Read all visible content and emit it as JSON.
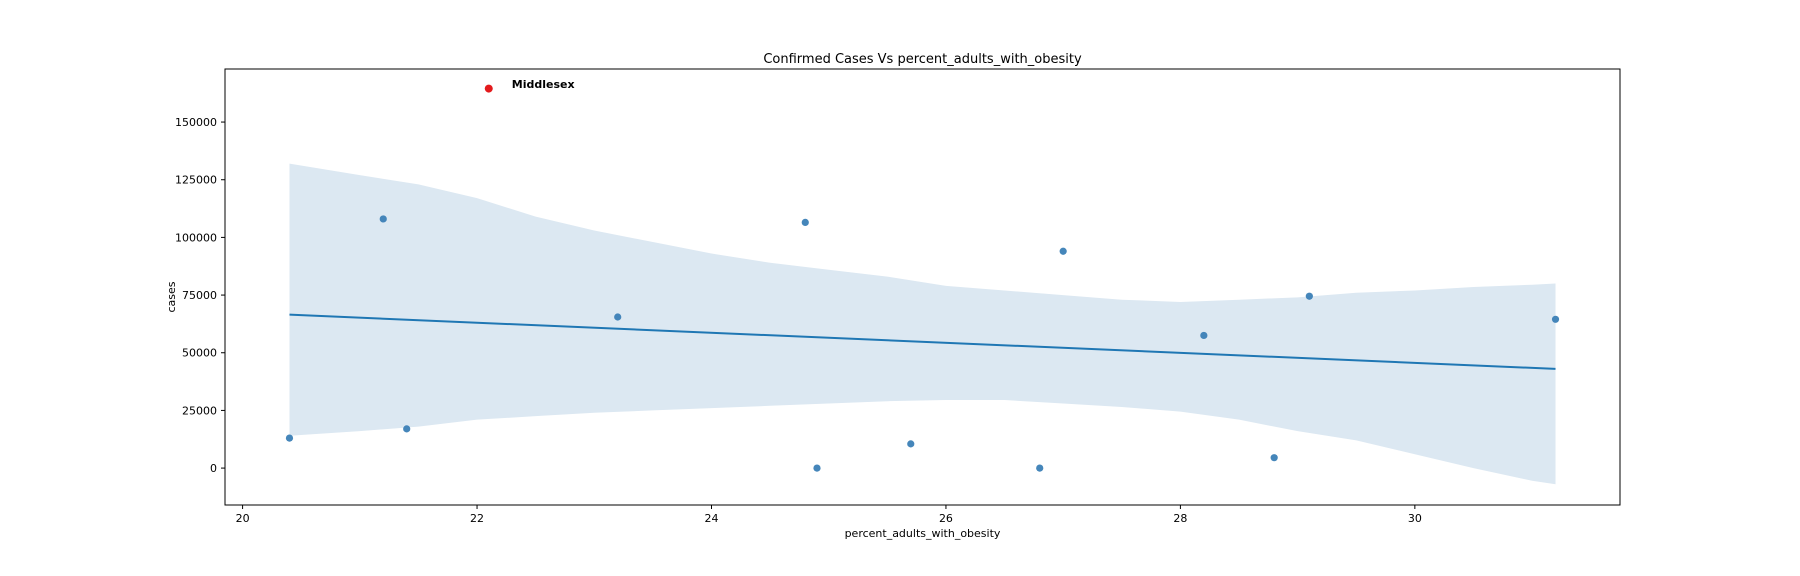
{
  "chart_data": {
    "type": "scatter",
    "title": "Confirmed Cases Vs percent_adults_with_obesity",
    "xlabel": "percent_adults_with_obesity",
    "ylabel": "cases",
    "xlim": [
      19.85,
      31.75
    ],
    "ylim": [
      -16000,
      173000
    ],
    "xticks": [
      20,
      22,
      24,
      26,
      28,
      30
    ],
    "yticks": [
      0,
      25000,
      50000,
      75000,
      100000,
      125000,
      150000
    ],
    "grid": false,
    "colors": {
      "points": "#3b7fb6",
      "line": "#1f77b4",
      "band": "#dce8f2",
      "highlight": "#e31a1c"
    },
    "series": [
      {
        "points": [
          {
            "x": 20.4,
            "y": 13000
          },
          {
            "x": 21.2,
            "y": 108000
          },
          {
            "x": 21.4,
            "y": 17000
          },
          {
            "x": 23.2,
            "y": 65500
          },
          {
            "x": 24.8,
            "y": 106500
          },
          {
            "x": 24.9,
            "y": 0
          },
          {
            "x": 25.7,
            "y": 10500
          },
          {
            "x": 26.8,
            "y": 0
          },
          {
            "x": 27.0,
            "y": 94000
          },
          {
            "x": 28.2,
            "y": 57500
          },
          {
            "x": 28.8,
            "y": 4500
          },
          {
            "x": 29.1,
            "y": 74500
          },
          {
            "x": 31.2,
            "y": 64500
          }
        ]
      }
    ],
    "regression": {
      "x": [
        20.4,
        31.2
      ],
      "y": [
        66500,
        43000
      ]
    },
    "confidence_band": {
      "x": [
        20.4,
        21.0,
        21.5,
        22.0,
        22.5,
        23.0,
        23.5,
        24.0,
        24.5,
        25.0,
        25.5,
        26.0,
        26.5,
        27.0,
        27.5,
        28.0,
        28.5,
        29.0,
        29.5,
        30.0,
        30.5,
        31.0,
        31.2
      ],
      "upper": [
        132000,
        127000,
        123000,
        117000,
        109000,
        103000,
        98000,
        93000,
        89000,
        86000,
        83000,
        79000,
        77000,
        75000,
        73000,
        72000,
        73000,
        74000,
        76000,
        77000,
        78500,
        79500,
        80000
      ],
      "lower": [
        14000,
        16000,
        18000,
        21000,
        22500,
        24000,
        25000,
        26000,
        27000,
        28000,
        29000,
        29500,
        29500,
        28000,
        26500,
        24500,
        21000,
        16000,
        12000,
        6000,
        0,
        -5500,
        -7000
      ]
    },
    "highlight": {
      "x": 22.1,
      "y": 164500,
      "label": "Middlesex"
    }
  }
}
